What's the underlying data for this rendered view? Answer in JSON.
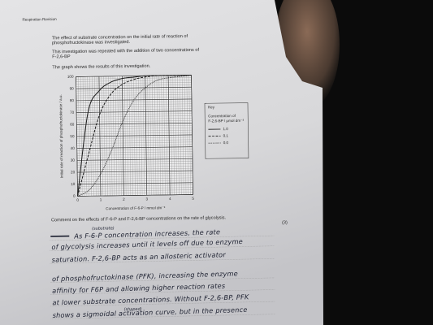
{
  "header": {
    "title": "Respiration Revision"
  },
  "intro": {
    "lines": [
      "The effect of substrate concentration on the initial rate of reaction of",
      "phosphofructokinase was investigated.",
      "This investigation was repeated with the addition of two concentrations of",
      "F-2,6-BP",
      "The graph shows the results of this investigation."
    ]
  },
  "graph": {
    "type": "line",
    "x_label": "Concentration of F-6-P / mmol dm⁻³",
    "y_label": "Initial rate of reaction of phosphofructokinase / a.u.",
    "xlim": [
      0,
      5
    ],
    "ylim": [
      0,
      100
    ],
    "xticks": [
      0,
      1,
      2,
      3,
      4,
      5
    ],
    "yticks": [
      0,
      10,
      20,
      30,
      40,
      50,
      60,
      70,
      80,
      90,
      100
    ],
    "grid": true,
    "x": [
      0,
      0.5,
      1,
      1.5,
      2,
      2.5,
      3,
      3.5,
      4,
      4.5,
      5
    ],
    "series": [
      {
        "name": "1.0",
        "style": "solid",
        "color": "#1a1a1a",
        "values": [
          0,
          70,
          88,
          95,
          98,
          99,
          100,
          100,
          100,
          100,
          100
        ]
      },
      {
        "name": "0.1",
        "style": "dashed",
        "color": "#1a1a1a",
        "values": [
          0,
          35,
          68,
          85,
          93,
          97,
          99,
          100,
          100,
          100,
          100
        ]
      },
      {
        "name": "0.0",
        "style": "dotted",
        "color": "#1a1a1a",
        "values": [
          0,
          5,
          18,
          38,
          62,
          80,
          90,
          96,
          98,
          99,
          100
        ]
      }
    ],
    "key": {
      "title": "Key",
      "lines": [
        "Concentration of",
        "F-2,6-BP / µmol dm⁻³"
      ]
    }
  },
  "question": {
    "text": "Comment on the effects of F-6-P and F-2,6-BP concentrations on the rate of glycolysis.",
    "marks": "(3)"
  },
  "answer": {
    "lines": [
      "As F-6-P concentration increases, the rate",
      "of glycolysis increases until it levels off due to enzyme",
      "saturation. F-2,6-BP acts as an allosteric activator",
      "of phosphofructokinase (PFK), increasing the enzyme",
      "affinity for F6P and allowing higher reaction rates",
      "at lower substrate concentrations. Without F-2,6-BP, PFK",
      "shows a sigmoidal activation curve, but in the presence"
    ],
    "annotations": [
      "(substrate)",
      "(shaped)"
    ]
  }
}
